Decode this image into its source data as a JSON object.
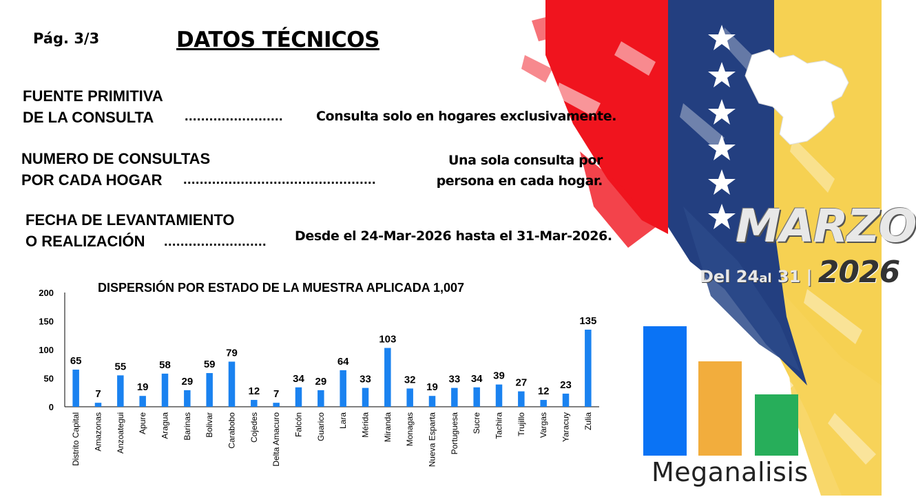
{
  "header": {
    "page_label": "Pág.  3/3",
    "title": "DATOS TÉCNICOS"
  },
  "sections": [
    {
      "label_line1": "FUENTE PRIMITIVA",
      "label_line2": "DE LA CONSULTA",
      "dots": "........................",
      "value_line1": "Consulta solo en hogares exclusivamente.",
      "value_line2": ""
    },
    {
      "label_line1": "NUMERO DE CONSULTAS",
      "label_line2": "POR CADA HOGAR",
      "dots": "...............................................",
      "value_line1": "Una sola consulta por",
      "value_line2": "persona en cada hogar."
    },
    {
      "label_line1": "FECHA DE LEVANTAMIENTO",
      "label_line2": "O REALIZACIÓN",
      "dots": ".........................",
      "value_line1": "Desde el 24-Mar-2026 hasta el 31-Mar-2026.",
      "value_line2": ""
    }
  ],
  "banner": {
    "month": "MARZO",
    "del": "Del",
    "day_from": "24",
    "al": "al",
    "day_to": "31",
    "separator": "|",
    "year": "2026"
  },
  "logo": {
    "name": "Meganalisis",
    "colors": [
      "#0a73f5",
      "#f2ad3d",
      "#27ae5a"
    ]
  },
  "colors": {
    "bar": "#1a82f0",
    "flag_red": "#f0141e",
    "flag_blue": "#233f80",
    "flag_yellow": "#f5c934"
  },
  "chart_data": {
    "type": "bar",
    "title": "DISPERSIÓN POR ESTADO DE LA MUESTRA APLICADA 1,007",
    "categories": [
      "Distrito Capital",
      "Amazonas",
      "Anzoategui",
      "Apure",
      "Aragua",
      "Barinas",
      "Bolivar",
      "Carabobo",
      "Cojedes",
      "Delta Amacuro",
      "Falcón",
      "Guarico",
      "Lara",
      "Mérida",
      "Miranda",
      "Monagas",
      "Nueva Esparta",
      "Portuguesa",
      "Sucre",
      "Tachira",
      "Trujillo",
      "Vargas",
      "Yaracuy",
      "Zulia"
    ],
    "values": [
      65,
      7,
      55,
      19,
      58,
      29,
      59,
      79,
      12,
      7,
      34,
      29,
      64,
      33,
      103,
      32,
      19,
      33,
      34,
      39,
      27,
      12,
      23,
      135
    ],
    "yticks": [
      0,
      50,
      100,
      150,
      200
    ],
    "ylim": [
      0,
      200
    ],
    "grid": false,
    "legend": "none"
  }
}
